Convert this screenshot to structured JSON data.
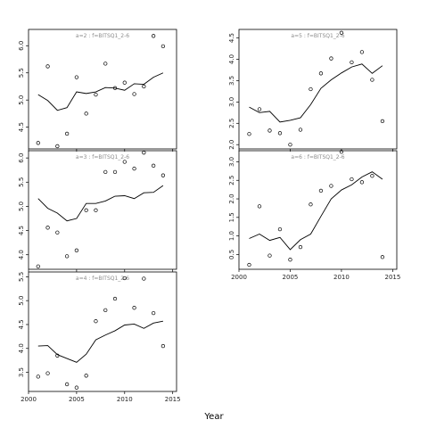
{
  "figure": {
    "xlabel": "Year"
  },
  "chart_data": [
    {
      "type": "scatter",
      "title": "a=2 : f=BITSQ1_2-6",
      "xlim": [
        2000,
        2015.4
      ],
      "ylim": [
        4.1,
        6.3
      ],
      "x_ticks": [
        2000,
        2005,
        2010,
        2015
      ],
      "x_tick_labels": [],
      "y_ticks": [
        4.5,
        5.0,
        5.5,
        6.0
      ],
      "y_tick_labels": [
        "4.5",
        "5.0",
        "5.5",
        "6.0"
      ],
      "series": [
        {
          "x": [
            2001,
            2002,
            2003,
            2004,
            2005,
            2006,
            2007,
            2008,
            2009,
            2010,
            2011,
            2012,
            2013,
            2014
          ],
          "y": [
            4.21,
            5.62,
            4.15,
            4.38,
            5.42,
            4.75,
            5.1,
            5.67,
            5.22,
            5.32,
            5.11,
            5.25,
            6.18,
            5.99
          ]
        },
        {
          "x": [
            2001,
            2002,
            2003,
            2004,
            2005,
            2006,
            2007,
            2008,
            2009,
            2010,
            2011,
            2012,
            2013,
            2014
          ],
          "y": [
            5.1,
            4.99,
            4.81,
            4.86,
            5.15,
            5.12,
            5.15,
            5.23,
            5.22,
            5.18,
            5.3,
            5.29,
            5.42,
            5.5
          ]
        }
      ]
    },
    {
      "type": "scatter",
      "title": "a=3 : f=BITSQ1_2-6",
      "xlim": [
        2000,
        2015.4
      ],
      "ylim": [
        3.7,
        6.15
      ],
      "x_ticks": [
        2000,
        2005,
        2010,
        2015
      ],
      "x_tick_labels": [],
      "y_ticks": [
        4.0,
        4.5,
        5.0,
        5.5,
        6.0
      ],
      "y_tick_labels": [
        "4.0",
        "4.5",
        "5.0",
        "5.5",
        "6.0"
      ],
      "series": [
        {
          "x": [
            2001,
            2002,
            2003,
            2004,
            2005,
            2006,
            2007,
            2008,
            2009,
            2010,
            2011,
            2012,
            2013,
            2014
          ],
          "y": [
            3.76,
            4.56,
            4.46,
            3.97,
            4.09,
            4.92,
            4.92,
            5.71,
            5.71,
            5.92,
            5.78,
            6.11,
            5.84,
            5.64
          ]
        },
        {
          "x": [
            2001,
            2002,
            2003,
            2004,
            2005,
            2006,
            2007,
            2008,
            2009,
            2010,
            2011,
            2012,
            2013,
            2014
          ],
          "y": [
            5.16,
            4.96,
            4.86,
            4.7,
            4.75,
            5.06,
            5.06,
            5.11,
            5.21,
            5.22,
            5.16,
            5.28,
            5.29,
            5.43
          ]
        }
      ]
    },
    {
      "type": "scatter",
      "title": "a=4 : f=BITSQ1_2-6",
      "xlim": [
        2000,
        2015.4
      ],
      "ylim": [
        3.1,
        5.6
      ],
      "x_ticks": [
        2000,
        2005,
        2010,
        2015
      ],
      "x_tick_labels": [
        "2000",
        "2005",
        "2010",
        "2015"
      ],
      "y_ticks": [
        3.5,
        4.0,
        4.5,
        5.0,
        5.5
      ],
      "y_tick_labels": [
        "3.5",
        "4.0",
        "4.5",
        "5.0",
        "5.5"
      ],
      "series": [
        {
          "x": [
            2001,
            2002,
            2003,
            2004,
            2005,
            2006,
            2007,
            2008,
            2009,
            2010,
            2011,
            2012,
            2013,
            2014
          ],
          "y": [
            3.41,
            3.48,
            3.85,
            3.25,
            3.18,
            3.43,
            4.57,
            4.8,
            5.04,
            5.47,
            4.85,
            5.46,
            4.74,
            4.05
          ]
        },
        {
          "x": [
            2001,
            2002,
            2003,
            2004,
            2005,
            2006,
            2007,
            2008,
            2009,
            2010,
            2011,
            2012,
            2013,
            2014
          ],
          "y": [
            4.05,
            4.06,
            3.87,
            3.79,
            3.71,
            3.88,
            4.18,
            4.28,
            4.37,
            4.49,
            4.51,
            4.42,
            4.53,
            4.57
          ]
        }
      ]
    },
    {
      "type": "scatter",
      "title": "a=5 : f=BITSQ1_2-6",
      "xlim": [
        2000,
        2015.4
      ],
      "ylim": [
        1.9,
        4.7
      ],
      "x_ticks": [
        2000,
        2005,
        2010,
        2015
      ],
      "x_tick_labels": [],
      "y_ticks": [
        2.0,
        2.5,
        3.0,
        3.5,
        4.0,
        4.5
      ],
      "y_tick_labels": [
        "2.0",
        "2.5",
        "3.0",
        "3.5",
        "4.0",
        "4.5"
      ],
      "series": [
        {
          "x": [
            2001,
            2002,
            2003,
            2004,
            2005,
            2006,
            2007,
            2008,
            2009,
            2010,
            2011,
            2012,
            2013,
            2014
          ],
          "y": [
            2.25,
            2.83,
            2.33,
            2.27,
            2.0,
            2.35,
            3.3,
            3.67,
            4.02,
            4.62,
            3.93,
            4.17,
            3.52,
            2.55
          ]
        },
        {
          "x": [
            2001,
            2002,
            2003,
            2004,
            2005,
            2006,
            2007,
            2008,
            2009,
            2010,
            2011,
            2012,
            2013,
            2014
          ],
          "y": [
            2.88,
            2.75,
            2.78,
            2.53,
            2.57,
            2.63,
            2.94,
            3.32,
            3.52,
            3.68,
            3.82,
            3.89,
            3.67,
            3.85
          ]
        }
      ]
    },
    {
      "type": "scatter",
      "title": "a=6 : f=BITSQ1_2-6",
      "xlim": [
        2000,
        2015.4
      ],
      "ylim": [
        0.1,
        3.3
      ],
      "x_ticks": [
        2000,
        2005,
        2010,
        2015
      ],
      "x_tick_labels": [
        "2000",
        "2005",
        "2010",
        "2015"
      ],
      "y_ticks": [
        0.5,
        1.0,
        1.5,
        2.0,
        2.5,
        3.0
      ],
      "y_tick_labels": [
        "0.5",
        "1.0",
        "1.5",
        "2.0",
        "2.5",
        "3.0"
      ],
      "series": [
        {
          "x": [
            2001,
            2002,
            2003,
            2004,
            2005,
            2006,
            2007,
            2008,
            2009,
            2010,
            2011,
            2012,
            2013,
            2014
          ],
          "y": [
            0.22,
            1.8,
            0.47,
            1.18,
            0.36,
            0.7,
            1.85,
            2.22,
            2.35,
            3.27,
            2.53,
            2.45,
            2.62,
            0.43
          ]
        },
        {
          "x": [
            2001,
            2002,
            2003,
            2004,
            2005,
            2006,
            2007,
            2008,
            2009,
            2010,
            2011,
            2012,
            2013,
            2014
          ],
          "y": [
            0.93,
            1.05,
            0.88,
            0.96,
            0.63,
            0.9,
            1.05,
            1.53,
            2.0,
            2.24,
            2.38,
            2.59,
            2.73,
            2.53
          ]
        }
      ]
    }
  ]
}
